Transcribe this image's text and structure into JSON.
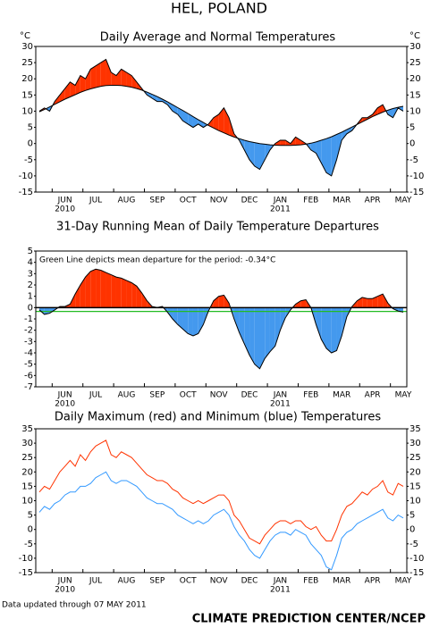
{
  "title": "HEL, POLAND",
  "footer_left": "Data updated through 07 MAY 2011",
  "footer_right": "CLIMATE PREDICTION CENTER/NCEP",
  "chart_data": [
    {
      "type": "line",
      "title": "Daily Average and Normal Temperatures",
      "y_unit": "°C",
      "fill": "between",
      "right_axis": true,
      "color_above": "#ff3300",
      "color_below": "#4499ee",
      "categories": [
        null,
        null,
        null,
        null,
        null,
        "JUN",
        null,
        null,
        null,
        null,
        null,
        "JUL",
        null,
        null,
        null,
        null,
        null,
        "AUG",
        null,
        null,
        null,
        null,
        null,
        "SEP",
        null,
        null,
        null,
        null,
        null,
        "OCT",
        null,
        null,
        null,
        null,
        null,
        "NOV",
        null,
        null,
        null,
        null,
        null,
        "DEC",
        null,
        null,
        null,
        null,
        null,
        "JAN",
        null,
        null,
        null,
        null,
        null,
        "FEB",
        null,
        null,
        null,
        null,
        null,
        "MAR",
        null,
        null,
        null,
        null,
        null,
        "APR",
        null,
        null,
        null,
        null,
        null,
        "MAY"
      ],
      "year_labels": [
        "2010",
        "2011"
      ],
      "ylim": [
        -15,
        30
      ],
      "yticks": [
        -15,
        -10,
        -5,
        0,
        5,
        10,
        15,
        20,
        25,
        30
      ],
      "series": [
        {
          "name": "Daily Average",
          "color": "#000000",
          "values": [
            10,
            11,
            10,
            13,
            15,
            17,
            19,
            18,
            21,
            20,
            23,
            24,
            25,
            26,
            22,
            21,
            23,
            22,
            21,
            19,
            17,
            15,
            14,
            13,
            13,
            12,
            10,
            9,
            7,
            6,
            5,
            6,
            5,
            6,
            8,
            9,
            11,
            8,
            3,
            1,
            -2,
            -5,
            -7,
            -8,
            -5,
            -2,
            0,
            1,
            1,
            0,
            2,
            1,
            0,
            -2,
            -3,
            -6,
            -9,
            -10,
            -5,
            1,
            3,
            4,
            6,
            8,
            8,
            9,
            11,
            12,
            9,
            8,
            11,
            10
          ]
        },
        {
          "name": "Normal",
          "color": "#000000",
          "values": [
            9.8,
            10.5,
            11.3,
            12.1,
            12.9,
            13.7,
            14.4,
            15.1,
            15.8,
            16.4,
            16.9,
            17.3,
            17.7,
            17.9,
            18.0,
            18.0,
            17.9,
            17.7,
            17.4,
            17.0,
            16.5,
            15.9,
            15.2,
            14.5,
            13.7,
            12.9,
            12.0,
            11.1,
            10.2,
            9.3,
            8.3,
            7.4,
            6.5,
            5.6,
            4.8,
            4.0,
            3.3,
            2.6,
            2.0,
            1.5,
            1.0,
            0.6,
            0.3,
            0.0,
            -0.2,
            -0.4,
            -0.5,
            -0.6,
            -0.6,
            -0.6,
            -0.5,
            -0.4,
            -0.2,
            0.1,
            0.5,
            1.0,
            1.5,
            2.1,
            2.8,
            3.5,
            4.3,
            5.1,
            5.9,
            6.7,
            7.5,
            8.3,
            9.0,
            9.7,
            10.3,
            10.8,
            11.2,
            11.5
          ]
        }
      ]
    },
    {
      "type": "line",
      "title": "31-Day Running Mean of Daily Temperature Departures",
      "fill": "zero",
      "right_axis": false,
      "color_above": "#ff3300",
      "color_below": "#4499ee",
      "annotation": "Green Line depicts mean departure for the period: -0.34°C",
      "reference_line": {
        "value": -0.34,
        "color": "#22bb22"
      },
      "categories": [
        null,
        null,
        null,
        null,
        null,
        "JUN",
        null,
        null,
        null,
        null,
        null,
        "JUL",
        null,
        null,
        null,
        null,
        null,
        "AUG",
        null,
        null,
        null,
        null,
        null,
        "SEP",
        null,
        null,
        null,
        null,
        null,
        "OCT",
        null,
        null,
        null,
        null,
        null,
        "NOV",
        null,
        null,
        null,
        null,
        null,
        "DEC",
        null,
        null,
        null,
        null,
        null,
        "JAN",
        null,
        null,
        null,
        null,
        null,
        "FEB",
        null,
        null,
        null,
        null,
        null,
        "MAR",
        null,
        null,
        null,
        null,
        null,
        "APR",
        null,
        null,
        null,
        null,
        null,
        "MAY"
      ],
      "year_labels": [
        "2010",
        "2011"
      ],
      "ylim": [
        -7,
        5
      ],
      "yticks": [
        -7,
        -6,
        -5,
        -4,
        -3,
        -2,
        -1,
        0,
        1,
        2,
        3,
        4,
        5
      ],
      "series": [
        {
          "name": "Running Mean Departure",
          "color": "#000000",
          "values": [
            -0.2,
            -0.6,
            -0.5,
            -0.2,
            0.1,
            0.1,
            0.3,
            1.2,
            2.0,
            2.7,
            3.2,
            3.4,
            3.3,
            3.1,
            2.9,
            2.7,
            2.6,
            2.4,
            2.2,
            1.9,
            1.3,
            0.6,
            0.1,
            0.0,
            0.1,
            -0.4,
            -1.0,
            -1.5,
            -1.9,
            -2.3,
            -2.5,
            -2.3,
            -1.5,
            -0.3,
            0.6,
            1.0,
            1.1,
            0.4,
            -1.0,
            -2.2,
            -3.2,
            -4.2,
            -5.0,
            -5.4,
            -4.5,
            -3.9,
            -3.4,
            -2.0,
            -0.9,
            -0.2,
            0.3,
            0.6,
            0.7,
            0.0,
            -1.5,
            -2.8,
            -3.6,
            -4.0,
            -3.8,
            -2.5,
            -0.8,
            0.1,
            0.6,
            0.9,
            0.8,
            0.8,
            1.0,
            1.2,
            0.4,
            -0.1,
            -0.3,
            -0.4
          ]
        }
      ]
    },
    {
      "type": "line",
      "title": "Daily Maximum (red) and Minimum (blue) Temperatures",
      "fill": "none",
      "right_axis": true,
      "categories": [
        null,
        null,
        null,
        null,
        null,
        "JUN",
        null,
        null,
        null,
        null,
        null,
        "JUL",
        null,
        null,
        null,
        null,
        null,
        "AUG",
        null,
        null,
        null,
        null,
        null,
        "SEP",
        null,
        null,
        null,
        null,
        null,
        "OCT",
        null,
        null,
        null,
        null,
        null,
        "NOV",
        null,
        null,
        null,
        null,
        null,
        "DEC",
        null,
        null,
        null,
        null,
        null,
        "JAN",
        null,
        null,
        null,
        null,
        null,
        "FEB",
        null,
        null,
        null,
        null,
        null,
        "MAR",
        null,
        null,
        null,
        null,
        null,
        "APR",
        null,
        null,
        null,
        null,
        null,
        "MAY"
      ],
      "year_labels": [
        "2010",
        "2011"
      ],
      "ylim": [
        -15,
        35
      ],
      "yticks": [
        -15,
        -10,
        -5,
        0,
        5,
        10,
        15,
        20,
        25,
        30,
        35
      ],
      "series": [
        {
          "name": "Maximum",
          "color": "#ff3300",
          "values": [
            13,
            15,
            14,
            17,
            20,
            22,
            24,
            22,
            26,
            24,
            27,
            29,
            30,
            31,
            26,
            25,
            27,
            26,
            25,
            23,
            21,
            19,
            18,
            17,
            17,
            16,
            14,
            13,
            11,
            10,
            9,
            10,
            9,
            10,
            11,
            12,
            12,
            10,
            5,
            3,
            0,
            -3,
            -4,
            -5,
            -2,
            0,
            2,
            3,
            3,
            2,
            3,
            3,
            1,
            0,
            1,
            -2,
            -4,
            -4,
            0,
            5,
            8,
            9,
            11,
            13,
            12,
            14,
            15,
            17,
            13,
            12,
            16,
            15
          ]
        },
        {
          "name": "Minimum",
          "color": "#3399ff",
          "values": [
            6,
            8,
            7,
            9,
            10,
            12,
            13,
            13,
            15,
            15,
            16,
            18,
            19,
            20,
            17,
            16,
            17,
            17,
            16,
            15,
            13,
            11,
            10,
            9,
            9,
            8,
            7,
            5,
            4,
            3,
            2,
            3,
            2,
            3,
            5,
            6,
            7,
            5,
            1,
            -2,
            -4,
            -7,
            -9,
            -10,
            -7,
            -4,
            -2,
            -1,
            -1,
            -2,
            0,
            -1,
            -2,
            -5,
            -7,
            -9,
            -13,
            -14,
            -9,
            -3,
            -1,
            0,
            2,
            3,
            4,
            5,
            6,
            7,
            4,
            3,
            5,
            4
          ]
        }
      ]
    }
  ]
}
